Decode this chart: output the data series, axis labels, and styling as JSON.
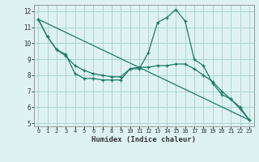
{
  "title": "",
  "xlabel": "Humidex (Indice chaleur)",
  "bg_color": "#dff2f2",
  "grid_color": "#aad4d4",
  "line_color": "#1a7a6a",
  "xlim": [
    -0.5,
    23.5
  ],
  "ylim": [
    4.8,
    12.4
  ],
  "yticks": [
    5,
    6,
    7,
    8,
    9,
    10,
    11,
    12
  ],
  "xticks": [
    0,
    1,
    2,
    3,
    4,
    5,
    6,
    7,
    8,
    9,
    10,
    11,
    12,
    13,
    14,
    15,
    16,
    17,
    18,
    19,
    20,
    21,
    22,
    23
  ],
  "line1_x": [
    0,
    1,
    2,
    3,
    4,
    5,
    6,
    7,
    8,
    9,
    10,
    11,
    12,
    13,
    14,
    15,
    16,
    17,
    18,
    19,
    20,
    21,
    22,
    23
  ],
  "line1_y": [
    11.5,
    10.4,
    9.6,
    9.3,
    8.1,
    7.8,
    7.8,
    7.7,
    7.7,
    7.7,
    8.4,
    8.4,
    9.4,
    11.3,
    11.6,
    12.1,
    11.4,
    9.0,
    8.6,
    7.5,
    6.8,
    6.5,
    6.0,
    5.2
  ],
  "line2_x": [
    0,
    1,
    2,
    3,
    4,
    5,
    6,
    7,
    8,
    9,
    10,
    11,
    12,
    13,
    14,
    15,
    16,
    17,
    18,
    19,
    20,
    21,
    22,
    23
  ],
  "line2_y": [
    11.5,
    10.4,
    9.6,
    9.2,
    8.6,
    8.3,
    8.1,
    8.0,
    7.9,
    7.9,
    8.4,
    8.5,
    8.5,
    8.6,
    8.6,
    8.7,
    8.7,
    8.4,
    8.0,
    7.6,
    7.0,
    6.5,
    5.9,
    5.2
  ],
  "line3_x": [
    0,
    23
  ],
  "line3_y": [
    11.5,
    5.2
  ]
}
